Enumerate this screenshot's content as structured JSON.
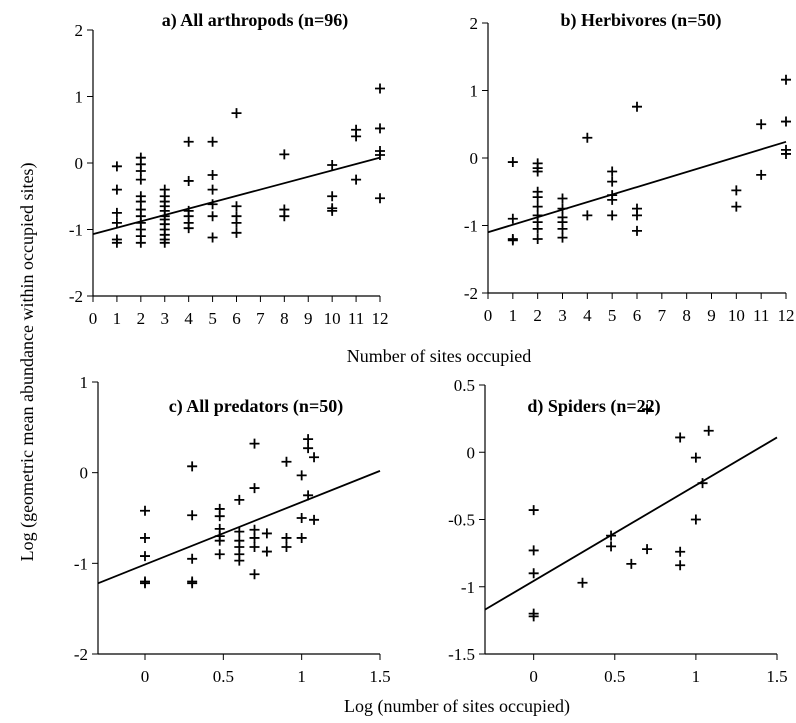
{
  "figure": {
    "shared_xlabel_top": "Number of sites occupied",
    "shared_xlabel_bottom": "Log (number of sites occupied)",
    "shared_ylabel": "Log (geometric mean abundance within occupied sites)"
  },
  "chart_data": [
    {
      "type": "scatter",
      "title": "a) All arthropods (n=96)",
      "xlabel": "Number of sites occupied",
      "ylabel": "Log (geometric mean abundance within occupied sites)",
      "xlim": [
        0,
        12
      ],
      "ylim": [
        -2,
        2
      ],
      "xticks": [
        0,
        1,
        2,
        3,
        4,
        5,
        6,
        7,
        8,
        9,
        10,
        11,
        12
      ],
      "xtick_labels": [
        "0",
        "1",
        "2",
        "3",
        "4",
        "5",
        "6",
        "7",
        "8",
        "9",
        "10",
        "11",
        "12"
      ],
      "yticks": [
        -2,
        -1,
        0,
        1,
        2
      ],
      "ytick_labels": [
        "-2",
        "-1",
        "0",
        "1",
        "2"
      ],
      "points": [
        [
          1,
          -0.05
        ],
        [
          1,
          -0.4
        ],
        [
          1,
          -0.75
        ],
        [
          1,
          -0.9
        ],
        [
          1,
          -1.15
        ],
        [
          1,
          -1.2
        ],
        [
          2,
          0.08
        ],
        [
          2,
          -0.02
        ],
        [
          2,
          -0.12
        ],
        [
          2,
          -0.25
        ],
        [
          2,
          -0.5
        ],
        [
          2,
          -0.58
        ],
        [
          2,
          -0.7
        ],
        [
          2,
          -0.8
        ],
        [
          2,
          -0.9
        ],
        [
          2,
          -1.0
        ],
        [
          2,
          -1.1
        ],
        [
          2,
          -1.2
        ],
        [
          3,
          -0.4
        ],
        [
          3,
          -0.5
        ],
        [
          3,
          -0.58
        ],
        [
          3,
          -0.65
        ],
        [
          3,
          -0.72
        ],
        [
          3,
          -0.8
        ],
        [
          3,
          -0.85
        ],
        [
          3,
          -0.92
        ],
        [
          3,
          -1.0
        ],
        [
          3,
          -1.08
        ],
        [
          3,
          -1.15
        ],
        [
          3,
          -1.2
        ],
        [
          4,
          0.32
        ],
        [
          4,
          -0.27
        ],
        [
          4,
          -0.72
        ],
        [
          4,
          -0.8
        ],
        [
          4,
          -0.9
        ],
        [
          4,
          -0.98
        ],
        [
          5,
          0.32
        ],
        [
          5,
          -0.18
        ],
        [
          5,
          -0.4
        ],
        [
          5,
          -0.62
        ],
        [
          5,
          -0.8
        ],
        [
          5,
          -1.12
        ],
        [
          6,
          0.75
        ],
        [
          6,
          -0.65
        ],
        [
          6,
          -0.8
        ],
        [
          6,
          -0.9
        ],
        [
          6,
          -1.05
        ],
        [
          8,
          0.13
        ],
        [
          8,
          -0.7
        ],
        [
          8,
          -0.8
        ],
        [
          10,
          -0.03
        ],
        [
          10,
          -0.5
        ],
        [
          10,
          -0.68
        ],
        [
          10,
          -0.72
        ],
        [
          11,
          0.5
        ],
        [
          11,
          0.4
        ],
        [
          11,
          -0.25
        ],
        [
          12,
          1.12
        ],
        [
          12,
          0.52
        ],
        [
          12,
          0.18
        ],
        [
          12,
          0.12
        ],
        [
          12,
          -0.53
        ]
      ],
      "fit_line": {
        "x": [
          0,
          12
        ],
        "y": [
          -1.07,
          0.08
        ]
      }
    },
    {
      "type": "scatter",
      "title": "b) Herbivores (n=50)",
      "xlabel": "Number of sites occupied",
      "ylabel": "",
      "xlim": [
        0,
        12
      ],
      "ylim": [
        -2,
        2
      ],
      "xticks": [
        0,
        1,
        2,
        3,
        4,
        5,
        6,
        7,
        8,
        9,
        10,
        11,
        12
      ],
      "xtick_labels": [
        "0",
        "1",
        "2",
        "3",
        "4",
        "5",
        "6",
        "7",
        "8",
        "9",
        "10",
        "11",
        "12"
      ],
      "yticks": [
        -2,
        -1,
        0,
        1,
        2
      ],
      "ytick_labels": [
        "-2",
        "-1",
        "0",
        "1",
        "2"
      ],
      "points": [
        [
          1,
          -0.06
        ],
        [
          1,
          -0.9
        ],
        [
          1,
          -1.2
        ],
        [
          1,
          -1.22
        ],
        [
          2,
          -0.08
        ],
        [
          2,
          -0.15
        ],
        [
          2,
          -0.2
        ],
        [
          2,
          -0.5
        ],
        [
          2,
          -0.58
        ],
        [
          2,
          -0.72
        ],
        [
          2,
          -0.85
        ],
        [
          2,
          -0.95
        ],
        [
          2,
          -1.05
        ],
        [
          2,
          -1.2
        ],
        [
          3,
          -0.6
        ],
        [
          3,
          -0.75
        ],
        [
          3,
          -0.88
        ],
        [
          3,
          -0.95
        ],
        [
          3,
          -1.05
        ],
        [
          3,
          -1.18
        ],
        [
          4,
          0.3
        ],
        [
          4,
          -0.85
        ],
        [
          5,
          -0.2
        ],
        [
          5,
          -0.35
        ],
        [
          5,
          -0.55
        ],
        [
          5,
          -0.62
        ],
        [
          5,
          -0.85
        ],
        [
          6,
          0.76
        ],
        [
          6,
          -0.75
        ],
        [
          6,
          -0.85
        ],
        [
          6,
          -1.08
        ],
        [
          10,
          -0.48
        ],
        [
          10,
          -0.72
        ],
        [
          11,
          0.5
        ],
        [
          11,
          -0.25
        ],
        [
          12,
          1.16
        ],
        [
          12,
          0.54
        ],
        [
          12,
          0.12
        ],
        [
          12,
          0.06
        ]
      ],
      "fit_line": {
        "x": [
          0,
          12
        ],
        "y": [
          -1.1,
          0.24
        ]
      }
    },
    {
      "type": "scatter",
      "title": "c) All predators (n=50)",
      "xlabel": "Log (number of sites occupied)",
      "ylabel": "",
      "xlim": [
        -0.3,
        1.5
      ],
      "ylim": [
        -2,
        1
      ],
      "xticks": [
        0,
        0.5,
        1,
        1.5
      ],
      "xtick_labels": [
        "0",
        "0.5",
        "1",
        "1.5"
      ],
      "yticks": [
        -2,
        -1,
        0,
        1
      ],
      "ytick_labels": [
        "-2",
        "-1",
        "0",
        "1"
      ],
      "points": [
        [
          0,
          -0.42
        ],
        [
          0,
          -0.72
        ],
        [
          0,
          -0.92
        ],
        [
          0,
          -1.2
        ],
        [
          0,
          -1.22
        ],
        [
          0.301,
          0.07
        ],
        [
          0.301,
          -0.47
        ],
        [
          0.301,
          -0.95
        ],
        [
          0.301,
          -1.2
        ],
        [
          0.301,
          -1.22
        ],
        [
          0.477,
          -0.4
        ],
        [
          0.477,
          -0.48
        ],
        [
          0.477,
          -0.62
        ],
        [
          0.477,
          -0.7
        ],
        [
          0.477,
          -0.75
        ],
        [
          0.477,
          -0.9
        ],
        [
          0.602,
          -0.3
        ],
        [
          0.602,
          -0.65
        ],
        [
          0.602,
          -0.75
        ],
        [
          0.602,
          -0.82
        ],
        [
          0.602,
          -0.9
        ],
        [
          0.602,
          -0.97
        ],
        [
          0.699,
          0.32
        ],
        [
          0.699,
          -0.17
        ],
        [
          0.699,
          -0.63
        ],
        [
          0.699,
          -0.72
        ],
        [
          0.699,
          -0.82
        ],
        [
          0.699,
          -1.12
        ],
        [
          0.778,
          -0.67
        ],
        [
          0.778,
          -0.87
        ],
        [
          0.903,
          0.12
        ],
        [
          0.903,
          -0.72
        ],
        [
          0.903,
          -0.82
        ],
        [
          1.0,
          -0.03
        ],
        [
          1.0,
          -0.5
        ],
        [
          1.0,
          -0.72
        ],
        [
          1.041,
          0.37
        ],
        [
          1.041,
          0.27
        ],
        [
          1.041,
          -0.25
        ],
        [
          1.079,
          0.17
        ],
        [
          1.079,
          -0.52
        ]
      ],
      "fit_line": {
        "x": [
          -0.3,
          1.5
        ],
        "y": [
          -1.22,
          0.02
        ]
      }
    },
    {
      "type": "scatter",
      "title": "d) Spiders (n=22)",
      "xlabel": "Log (number of sites occupied)",
      "ylabel": "",
      "xlim": [
        -0.3,
        1.5
      ],
      "ylim": [
        -1.5,
        0.5
      ],
      "xticks": [
        0,
        0.5,
        1,
        1.5
      ],
      "xtick_labels": [
        "0",
        "0.5",
        "1",
        "1.5"
      ],
      "yticks": [
        -1.5,
        -1,
        -0.5,
        0,
        0.5
      ],
      "ytick_labels": [
        "-1.5",
        "-1",
        "-0.5",
        "0",
        "0.5"
      ],
      "points": [
        [
          0,
          -0.43
        ],
        [
          0,
          -0.73
        ],
        [
          0,
          -0.9
        ],
        [
          0,
          -1.2
        ],
        [
          0,
          -1.22
        ],
        [
          0.301,
          -0.97
        ],
        [
          0.477,
          -0.62
        ],
        [
          0.477,
          -0.7
        ],
        [
          0.602,
          -0.83
        ],
        [
          0.699,
          0.32
        ],
        [
          0.699,
          -0.72
        ],
        [
          0.903,
          0.11
        ],
        [
          0.903,
          -0.74
        ],
        [
          0.903,
          -0.84
        ],
        [
          1.0,
          -0.04
        ],
        [
          1.0,
          -0.5
        ],
        [
          1.041,
          -0.23
        ],
        [
          1.079,
          0.16
        ]
      ],
      "fit_line": {
        "x": [
          -0.3,
          1.5
        ],
        "y": [
          -1.17,
          0.11
        ]
      }
    }
  ]
}
